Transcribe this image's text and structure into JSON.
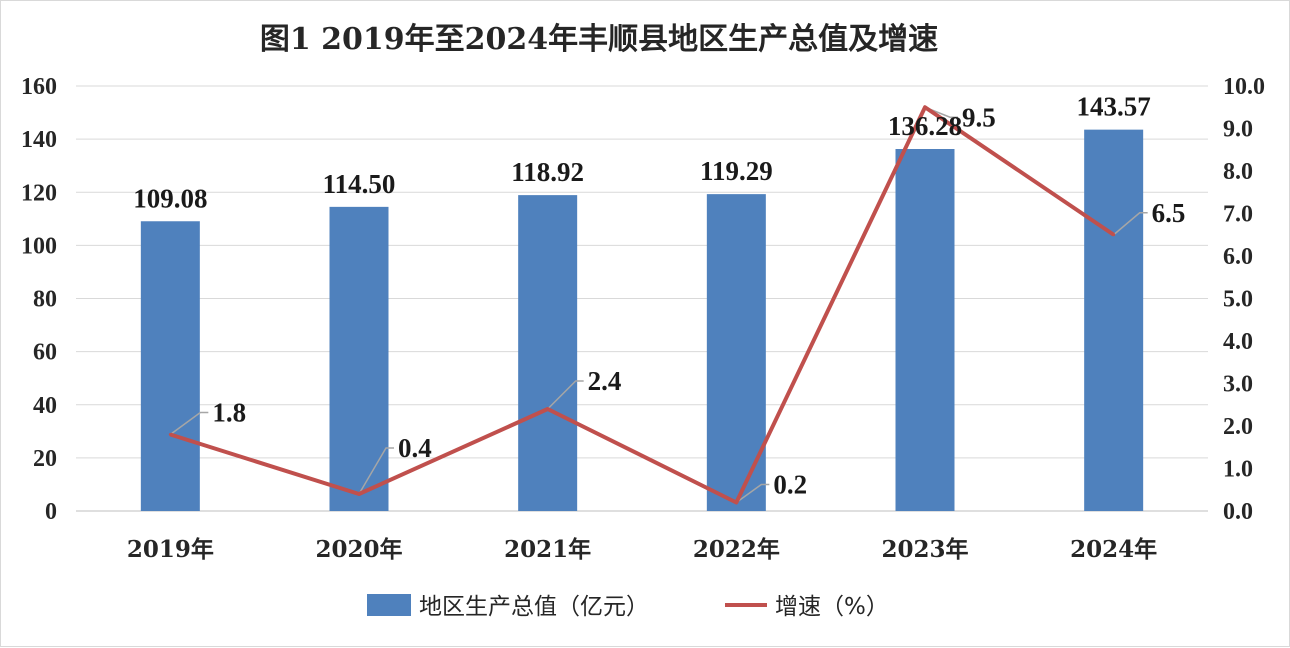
{
  "chart_data": {
    "type": "bar",
    "title": "图1   2019年至2024年丰顺县地区生产总值及增速",
    "categories": [
      "2019年",
      "2020年",
      "2021年",
      "2022年",
      "2023年",
      "2024年"
    ],
    "y_left": {
      "range": [
        0,
        160
      ],
      "ticks": [
        "0",
        "20",
        "40",
        "60",
        "80",
        "100",
        "120",
        "140",
        "160"
      ]
    },
    "y_right": {
      "range": [
        0,
        10
      ],
      "ticks": [
        "0.0",
        "1.0",
        "2.0",
        "3.0",
        "4.0",
        "5.0",
        "6.0",
        "7.0",
        "8.0",
        "9.0",
        "10.0"
      ]
    },
    "series": [
      {
        "name": "地区生产总值（亿元）",
        "type": "bar",
        "axis": "left",
        "color": "#4f81bd",
        "values": [
          109.08,
          114.5,
          118.92,
          119.29,
          136.28,
          143.57
        ],
        "labels": [
          "109.08",
          "114.50",
          "118.92",
          "119.29",
          "136.28",
          "143.57"
        ]
      },
      {
        "name": "增速（%）",
        "type": "line",
        "axis": "right",
        "color": "#c0504d",
        "values": [
          1.8,
          0.4,
          2.4,
          0.2,
          9.5,
          6.5
        ],
        "labels": [
          "1.8",
          "0.4",
          "2.4",
          "0.2",
          "9.5",
          "6.5"
        ]
      }
    ],
    "grid": true,
    "legend_position": "bottom"
  }
}
